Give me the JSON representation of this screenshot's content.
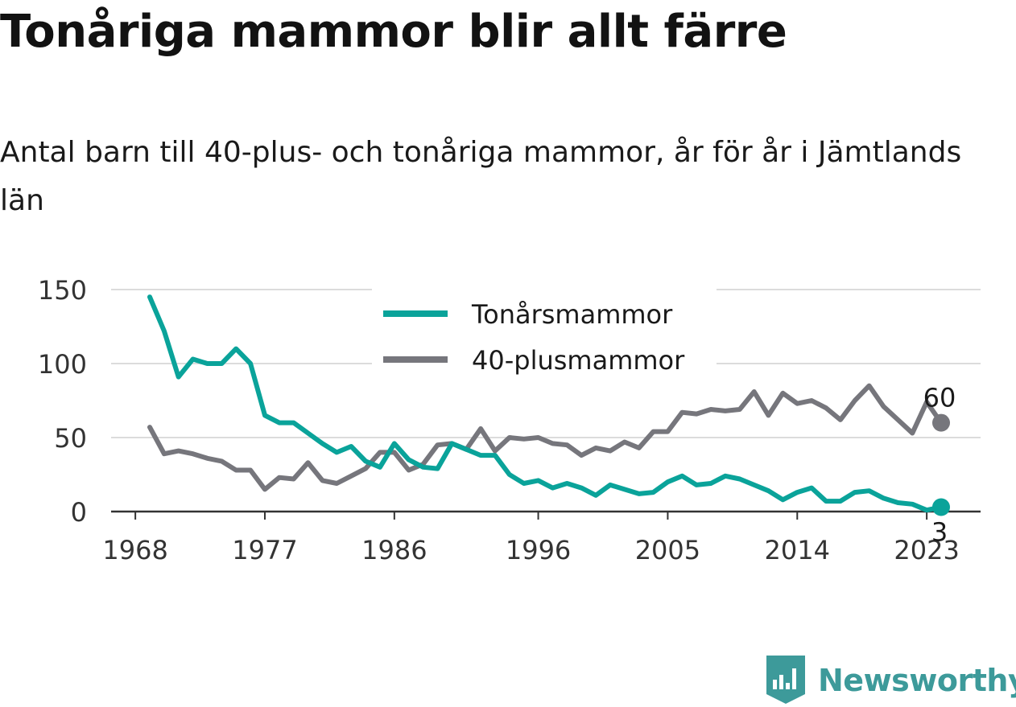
{
  "title": "Tonåriga mammor blir allt färre",
  "subtitle": "Antal barn till 40-plus- och tonåriga mammor, år för år i Jämtlands län",
  "brand": {
    "name": "Newsworthy",
    "logo_icon": "bar-chart-badge-icon"
  },
  "colors": {
    "teal": "#0aa39a",
    "grey": "#76767c",
    "brand": "#3d9a9a"
  },
  "chart_data": {
    "type": "line",
    "xlabel": "",
    "ylabel": "",
    "xlim": [
      1969,
      2024
    ],
    "ylim": [
      0,
      150
    ],
    "x_ticks": [
      1968,
      1977,
      1986,
      1996,
      2005,
      2014,
      2023
    ],
    "y_ticks": [
      0,
      50,
      100,
      150
    ],
    "grid": true,
    "legend": "top-center",
    "x": [
      1969,
      1970,
      1971,
      1972,
      1973,
      1974,
      1975,
      1976,
      1977,
      1978,
      1979,
      1980,
      1981,
      1982,
      1983,
      1984,
      1985,
      1986,
      1987,
      1988,
      1989,
      1990,
      1991,
      1992,
      1993,
      1994,
      1995,
      1996,
      1997,
      1998,
      1999,
      2000,
      2001,
      2002,
      2003,
      2004,
      2005,
      2006,
      2007,
      2008,
      2009,
      2010,
      2011,
      2012,
      2013,
      2014,
      2015,
      2016,
      2017,
      2018,
      2019,
      2020,
      2021,
      2022,
      2023,
      2024
    ],
    "series": [
      {
        "name": "Tonårsmammor",
        "color": "#0aa39a",
        "values": [
          145,
          122,
          91,
          103,
          100,
          100,
          110,
          100,
          65,
          60,
          60,
          53,
          46,
          40,
          44,
          34,
          30,
          46,
          35,
          30,
          29,
          46,
          42,
          38,
          38,
          25,
          19,
          21,
          16,
          19,
          16,
          11,
          18,
          15,
          12,
          13,
          20,
          24,
          18,
          19,
          24,
          22,
          18,
          14,
          8,
          13,
          16,
          7,
          7,
          13,
          14,
          9,
          6,
          5,
          1,
          3
        ],
        "end_label": "3"
      },
      {
        "name": "40-plusmammor",
        "color": "#76767c",
        "values": [
          57,
          39,
          41,
          39,
          36,
          34,
          28,
          28,
          15,
          23,
          22,
          33,
          21,
          19,
          24,
          29,
          40,
          40,
          28,
          32,
          45,
          46,
          42,
          56,
          41,
          50,
          49,
          50,
          46,
          45,
          38,
          43,
          41,
          47,
          43,
          54,
          54,
          67,
          66,
          69,
          68,
          69,
          81,
          65,
          80,
          73,
          75,
          70,
          62,
          75,
          85,
          71,
          62,
          53,
          74,
          60
        ],
        "end_label": "60"
      }
    ]
  }
}
